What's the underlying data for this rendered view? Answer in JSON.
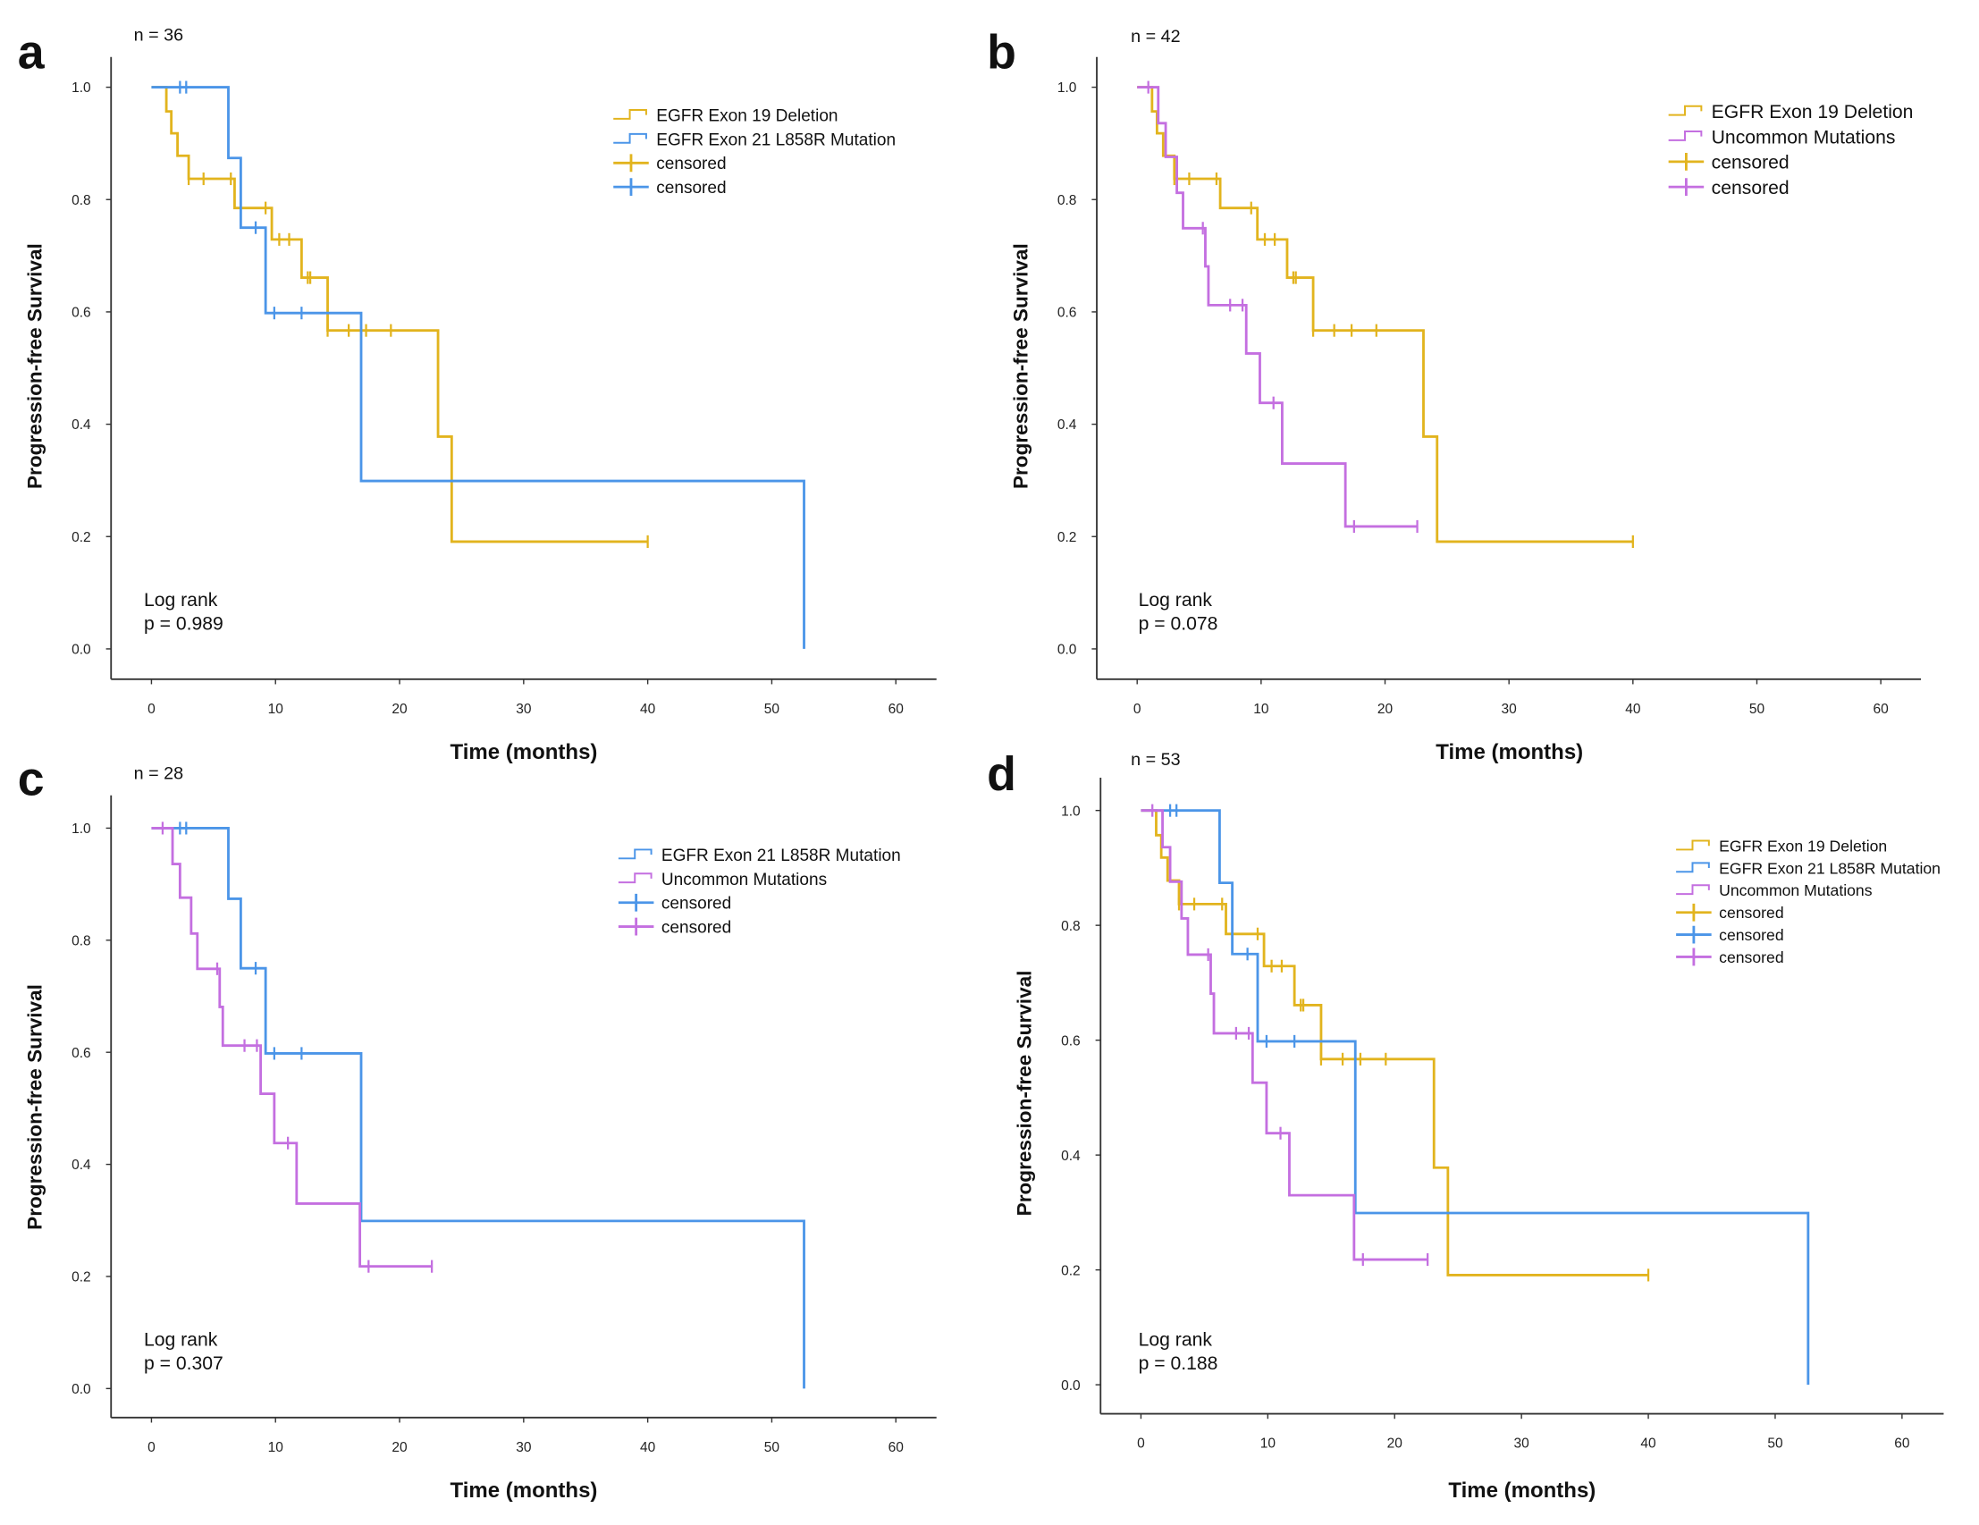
{
  "colors": {
    "exon19": "#E2B41E",
    "exon21": "#4B95E8",
    "uncommon": "#C46FE0"
  },
  "chart_data": [
    {
      "type": "line",
      "panel": "a",
      "n_label": "n = 36",
      "xlabel": "Time (months)",
      "ylabel": "Progression-free Survival",
      "xlim": [
        0,
        60
      ],
      "ylim": [
        0,
        1.0
      ],
      "xticks": [
        "0",
        "10",
        "20",
        "30",
        "40",
        "50",
        "60"
      ],
      "yticks": [
        "0.0",
        "0.2",
        "0.4",
        "0.6",
        "0.8",
        "1.0"
      ],
      "legend": [
        {
          "label": "EGFR Exon 19 Deletion",
          "kind": "line",
          "series": "exon19"
        },
        {
          "label": "EGFR Exon 21 L858R Mutation",
          "kind": "line",
          "series": "exon21"
        },
        {
          "label": "censored",
          "kind": "censor",
          "series": "exon19"
        },
        {
          "label": "censored",
          "kind": "censor",
          "series": "exon21"
        }
      ],
      "test_label": "Log rank",
      "p_value": "p = 0.989",
      "series": [
        "exon19",
        "exon21"
      ]
    },
    {
      "type": "line",
      "panel": "b",
      "n_label": "n = 42",
      "xlabel": "Time (months)",
      "ylabel": "Progression-free Survival",
      "xlim": [
        0,
        60
      ],
      "ylim": [
        0,
        1.0
      ],
      "xticks": [
        "0",
        "10",
        "20",
        "30",
        "40",
        "50",
        "60"
      ],
      "yticks": [
        "0.0",
        "0.2",
        "0.4",
        "0.6",
        "0.8",
        "1.0"
      ],
      "legend": [
        {
          "label": "EGFR Exon 19 Deletion",
          "kind": "line",
          "series": "exon19"
        },
        {
          "label": "Uncommon Mutations",
          "kind": "line",
          "series": "uncommon"
        },
        {
          "label": "censored",
          "kind": "censor",
          "series": "exon19"
        },
        {
          "label": "censored",
          "kind": "censor",
          "series": "uncommon"
        }
      ],
      "test_label": "Log rank",
      "p_value": "p = 0.078",
      "series": [
        "exon19",
        "uncommon"
      ]
    },
    {
      "type": "line",
      "panel": "c",
      "n_label": "n = 28",
      "xlabel": "Time (months)",
      "ylabel": "Progression-free Survival",
      "xlim": [
        0,
        60
      ],
      "ylim": [
        0,
        1.0
      ],
      "xticks": [
        "0",
        "10",
        "20",
        "30",
        "40",
        "50",
        "60"
      ],
      "yticks": [
        "0.0",
        "0.2",
        "0.4",
        "0.6",
        "0.8",
        "1.0"
      ],
      "legend": [
        {
          "label": "EGFR Exon 21 L858R Mutation",
          "kind": "line",
          "series": "exon21"
        },
        {
          "label": "Uncommon Mutations",
          "kind": "line",
          "series": "uncommon"
        },
        {
          "label": "censored",
          "kind": "censor",
          "series": "exon21"
        },
        {
          "label": "censored",
          "kind": "censor",
          "series": "uncommon"
        }
      ],
      "test_label": "Log rank",
      "p_value": "p = 0.307",
      "series": [
        "exon21",
        "uncommon"
      ]
    },
    {
      "type": "line",
      "panel": "d",
      "n_label": "n = 53",
      "xlabel": "Time (months)",
      "ylabel": "Progression-free Survival",
      "xlim": [
        0,
        60
      ],
      "ylim": [
        0,
        1.0
      ],
      "xticks": [
        "0",
        "10",
        "20",
        "30",
        "40",
        "50",
        "60"
      ],
      "yticks": [
        "0.0",
        "0.2",
        "0.4",
        "0.6",
        "0.8",
        "1.0"
      ],
      "legend": [
        {
          "label": "EGFR Exon 19 Deletion",
          "kind": "line",
          "series": "exon19"
        },
        {
          "label": "EGFR Exon 21 L858R Mutation",
          "kind": "line",
          "series": "exon21"
        },
        {
          "label": "Uncommon Mutations",
          "kind": "line",
          "series": "uncommon"
        },
        {
          "label": "censored",
          "kind": "censor",
          "series": "exon19"
        },
        {
          "label": "censored",
          "kind": "censor",
          "series": "exon21"
        },
        {
          "label": "censored",
          "kind": "censor",
          "series": "uncommon"
        }
      ],
      "test_label": "Log rank",
      "p_value": "p = 0.188",
      "series": [
        "exon19",
        "exon21",
        "uncommon"
      ]
    }
  ],
  "curves": {
    "exon19": {
      "steps": [
        [
          0,
          1.0
        ],
        [
          1.2,
          0.957
        ],
        [
          1.6,
          0.918
        ],
        [
          2.1,
          0.878
        ],
        [
          3.0,
          0.837
        ],
        [
          6.7,
          0.785
        ],
        [
          9.7,
          0.729
        ],
        [
          12.1,
          0.661
        ],
        [
          14.2,
          0.567
        ],
        [
          23.1,
          0.378
        ],
        [
          24.2,
          0.191
        ]
      ],
      "end": 40,
      "censored": [
        3.0,
        4.2,
        6.4,
        9.2,
        10.3,
        11.1,
        12.6,
        12.8,
        14.2,
        15.9,
        17.3,
        19.3,
        40
      ]
    },
    "exon21": {
      "steps": [
        [
          0,
          1.0
        ],
        [
          6.2,
          0.874
        ],
        [
          7.2,
          0.75
        ],
        [
          9.2,
          0.598
        ],
        [
          16.9,
          0.299
        ],
        [
          52.6,
          0.0
        ]
      ],
      "end": 52.6,
      "censored": [
        2.3,
        2.8,
        8.4,
        9.9,
        12.1
      ]
    },
    "uncommon": {
      "steps": [
        [
          0,
          1.0
        ],
        [
          1.7,
          0.936
        ],
        [
          2.3,
          0.876
        ],
        [
          3.2,
          0.812
        ],
        [
          3.7,
          0.749
        ],
        [
          5.5,
          0.681
        ],
        [
          5.75,
          0.612
        ],
        [
          8.8,
          0.526
        ],
        [
          9.9,
          0.438
        ],
        [
          11.7,
          0.33
        ],
        [
          16.8,
          0.218
        ]
      ],
      "end": 22.6,
      "censored": [
        0.9,
        5.3,
        7.5,
        8.5,
        11.0,
        17.5,
        22.6
      ]
    }
  }
}
